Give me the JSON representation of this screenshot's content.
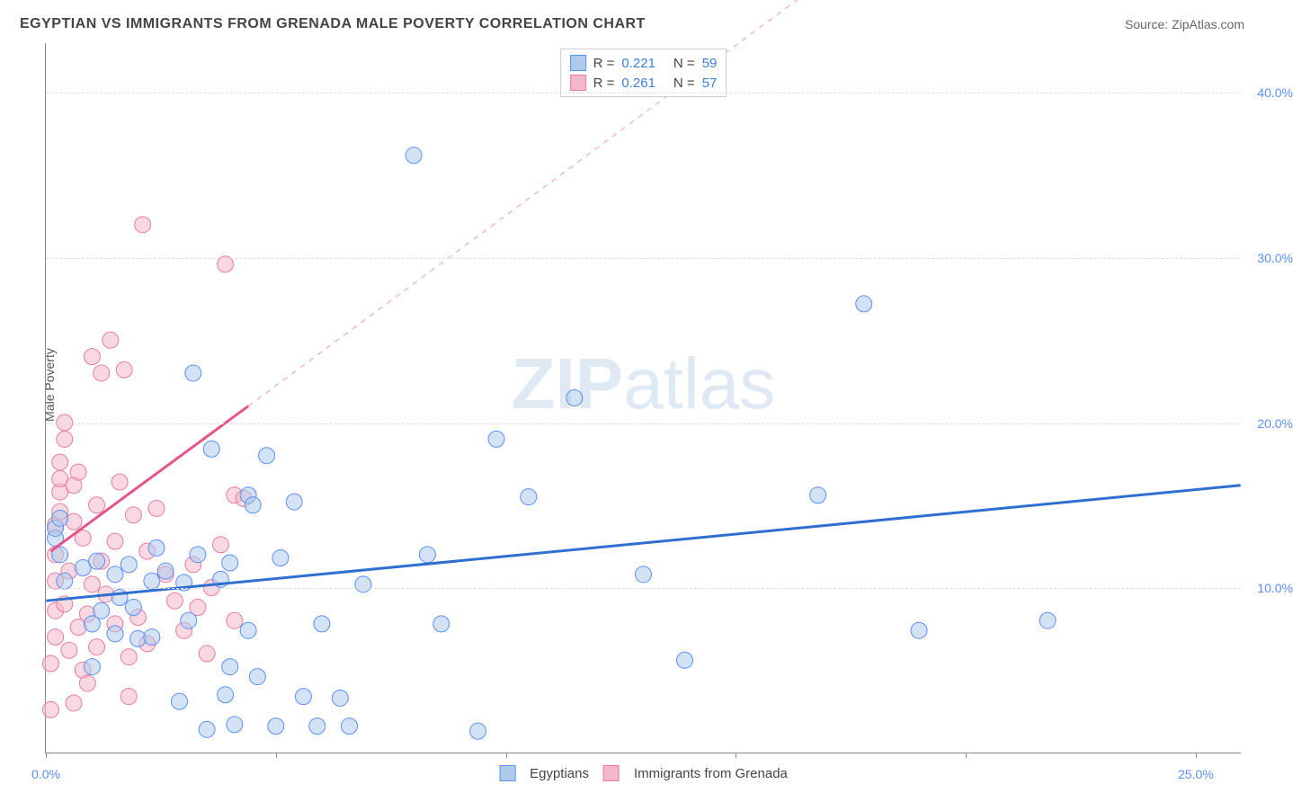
{
  "header": {
    "title": "EGYPTIAN VS IMMIGRANTS FROM GRENADA MALE POVERTY CORRELATION CHART",
    "source": "Source: ZipAtlas.com"
  },
  "axes": {
    "ylabel": "Male Poverty",
    "xlim": [
      0,
      26
    ],
    "ylim": [
      0,
      43
    ],
    "xticks": [
      0,
      5,
      10,
      15,
      20,
      25
    ],
    "xtick_labels": [
      "0.0%",
      "",
      "",
      "",
      "",
      "25.0%"
    ],
    "yticks": [
      10,
      20,
      30,
      40
    ],
    "ytick_labels": [
      "10.0%",
      "20.0%",
      "30.0%",
      "40.0%"
    ],
    "grid_color": "#dddddd",
    "axis_color": "#888888",
    "tick_color": "#5b8ff9"
  },
  "watermark": {
    "text_bold": "ZIP",
    "text_thin": "atlas",
    "color": "#b8cfe8"
  },
  "series": {
    "egyptians": {
      "label": "Egyptians",
      "fill": "#aecbeb",
      "stroke": "#5b8ff9",
      "fill_opacity": 0.55,
      "marker_r": 9,
      "R": "0.221",
      "N": "59",
      "trend": {
        "x1": 0,
        "y1": 9.2,
        "x2": 26,
        "y2": 16.2,
        "color": "#2f6fd0",
        "width": 3,
        "dash": ""
      },
      "points": [
        [
          0.2,
          13
        ],
        [
          0.2,
          13.6
        ],
        [
          0.3,
          12
        ],
        [
          0.3,
          14.2
        ],
        [
          0.4,
          10.4
        ],
        [
          0.8,
          11.2
        ],
        [
          1.0,
          7.8
        ],
        [
          1.0,
          5.2
        ],
        [
          1.1,
          11.6
        ],
        [
          1.2,
          8.6
        ],
        [
          1.5,
          10.8
        ],
        [
          1.5,
          7.2
        ],
        [
          1.6,
          9.4
        ],
        [
          1.8,
          11.4
        ],
        [
          1.9,
          8.8
        ],
        [
          2.0,
          6.9
        ],
        [
          2.3,
          10.4
        ],
        [
          2.3,
          7.0
        ],
        [
          2.4,
          12.4
        ],
        [
          2.6,
          11.0
        ],
        [
          2.9,
          3.1
        ],
        [
          3.0,
          10.3
        ],
        [
          3.1,
          8.0
        ],
        [
          3.2,
          23.0
        ],
        [
          3.3,
          12.0
        ],
        [
          3.5,
          1.4
        ],
        [
          3.6,
          18.4
        ],
        [
          3.8,
          10.5
        ],
        [
          3.9,
          3.5
        ],
        [
          4.0,
          11.5
        ],
        [
          4.0,
          5.2
        ],
        [
          4.1,
          1.7
        ],
        [
          4.4,
          7.4
        ],
        [
          4.4,
          15.6
        ],
        [
          4.5,
          15.0
        ],
        [
          4.6,
          4.6
        ],
        [
          4.8,
          18.0
        ],
        [
          5.0,
          1.6
        ],
        [
          5.1,
          11.8
        ],
        [
          5.4,
          15.2
        ],
        [
          5.6,
          3.4
        ],
        [
          5.9,
          1.6
        ],
        [
          6.0,
          7.8
        ],
        [
          6.4,
          3.3
        ],
        [
          6.6,
          1.6
        ],
        [
          8.0,
          36.2
        ],
        [
          8.3,
          12.0
        ],
        [
          8.6,
          7.8
        ],
        [
          9.4,
          1.3
        ],
        [
          9.8,
          19.0
        ],
        [
          10.5,
          15.5
        ],
        [
          11.5,
          21.5
        ],
        [
          13.0,
          10.8
        ],
        [
          16.8,
          15.6
        ],
        [
          17.8,
          27.2
        ],
        [
          19.0,
          7.4
        ],
        [
          21.8,
          8.0
        ],
        [
          13.9,
          5.6
        ],
        [
          6.9,
          10.2
        ]
      ]
    },
    "grenada": {
      "label": "Immigrants from Grenada",
      "fill": "#f4b8c8",
      "stroke": "#e87ca0",
      "fill_opacity": 0.55,
      "marker_r": 9,
      "R": "0.261",
      "N": "57",
      "trend_solid": {
        "x1": 0.1,
        "y1": 12.2,
        "x2": 4.4,
        "y2": 21.0,
        "color": "#e5548b",
        "width": 3
      },
      "trend_dashed": {
        "x1": 4.4,
        "y1": 21.0,
        "x2": 17.5,
        "y2": 48.0,
        "color": "#f4b8c8",
        "width": 1.5,
        "dash": "6,6"
      },
      "points": [
        [
          0.1,
          2.6
        ],
        [
          0.1,
          5.4
        ],
        [
          0.2,
          7.0
        ],
        [
          0.2,
          8.6
        ],
        [
          0.2,
          10.4
        ],
        [
          0.2,
          12.0
        ],
        [
          0.2,
          13.8
        ],
        [
          0.3,
          15.8
        ],
        [
          0.3,
          14.6
        ],
        [
          0.3,
          16.6
        ],
        [
          0.3,
          17.6
        ],
        [
          0.4,
          19.0
        ],
        [
          0.4,
          20.0
        ],
        [
          0.4,
          9.0
        ],
        [
          0.5,
          6.2
        ],
        [
          0.5,
          11.0
        ],
        [
          0.6,
          14.0
        ],
        [
          0.6,
          16.2
        ],
        [
          0.7,
          17.0
        ],
        [
          0.7,
          7.6
        ],
        [
          0.8,
          5.0
        ],
        [
          0.8,
          13.0
        ],
        [
          0.9,
          4.2
        ],
        [
          0.9,
          8.4
        ],
        [
          1.0,
          24.0
        ],
        [
          1.0,
          10.2
        ],
        [
          1.1,
          6.4
        ],
        [
          1.1,
          15.0
        ],
        [
          1.2,
          23.0
        ],
        [
          1.2,
          11.6
        ],
        [
          1.3,
          9.6
        ],
        [
          1.4,
          25.0
        ],
        [
          1.5,
          7.8
        ],
        [
          1.5,
          12.8
        ],
        [
          1.6,
          16.4
        ],
        [
          1.7,
          23.2
        ],
        [
          1.8,
          5.8
        ],
        [
          1.9,
          14.4
        ],
        [
          2.0,
          8.2
        ],
        [
          2.1,
          32.0
        ],
        [
          2.2,
          12.2
        ],
        [
          2.2,
          6.6
        ],
        [
          2.4,
          14.8
        ],
        [
          2.6,
          10.8
        ],
        [
          2.8,
          9.2
        ],
        [
          3.0,
          7.4
        ],
        [
          3.2,
          11.4
        ],
        [
          3.3,
          8.8
        ],
        [
          3.5,
          6.0
        ],
        [
          3.6,
          10.0
        ],
        [
          3.8,
          12.6
        ],
        [
          3.9,
          29.6
        ],
        [
          4.1,
          15.6
        ],
        [
          4.1,
          8.0
        ],
        [
          4.3,
          15.4
        ],
        [
          0.6,
          3.0
        ],
        [
          1.8,
          3.4
        ]
      ]
    }
  },
  "legend_stats": {
    "R_label": "R =",
    "N_label": "N ="
  }
}
